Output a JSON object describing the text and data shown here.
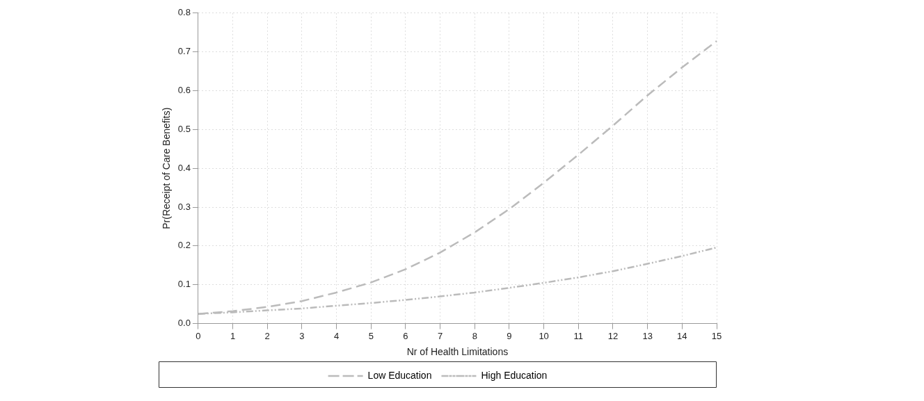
{
  "chart_data": {
    "type": "line",
    "xlabel": "Nr of Health Limitations",
    "ylabel": "Pr(Receipt of Care Benefits)",
    "x": [
      0,
      1,
      2,
      3,
      4,
      5,
      6,
      7,
      8,
      9,
      10,
      11,
      12,
      13,
      14,
      15
    ],
    "series": [
      {
        "name": "Low Education",
        "color": "#bbbbbb",
        "line_style": "dashed",
        "values": [
          0.025,
          0.032,
          0.043,
          0.058,
          0.08,
          0.106,
          0.14,
          0.183,
          0.235,
          0.295,
          0.363,
          0.435,
          0.51,
          0.588,
          0.66,
          0.728
        ]
      },
      {
        "name": "High Education",
        "color": "#bbbbbb",
        "line_style": "dotted",
        "values": [
          0.025,
          0.029,
          0.034,
          0.039,
          0.046,
          0.053,
          0.061,
          0.07,
          0.08,
          0.092,
          0.105,
          0.119,
          0.135,
          0.154,
          0.174,
          0.196
        ]
      }
    ],
    "xlim": [
      0,
      15
    ],
    "xticks": [
      0,
      1,
      2,
      3,
      4,
      5,
      6,
      7,
      8,
      9,
      10,
      11,
      12,
      13,
      14,
      15
    ],
    "ylim": [
      0,
      0.8
    ],
    "yticks": [
      {
        "value": 0,
        "label": "0.0"
      },
      {
        "value": 0.1,
        "label": "0.1"
      },
      {
        "value": 0.2,
        "label": "0.2"
      },
      {
        "value": 0.3,
        "label": "0.3"
      },
      {
        "value": 0.4,
        "label": "0.4"
      },
      {
        "value": 0.5,
        "label": "0.5"
      },
      {
        "value": 0.6,
        "label": "0.6"
      },
      {
        "value": 0.7,
        "label": "0.7"
      },
      {
        "value": 0.8,
        "label": "0.8"
      }
    ],
    "grid": true,
    "legend": "bottom",
    "marker": "none"
  }
}
